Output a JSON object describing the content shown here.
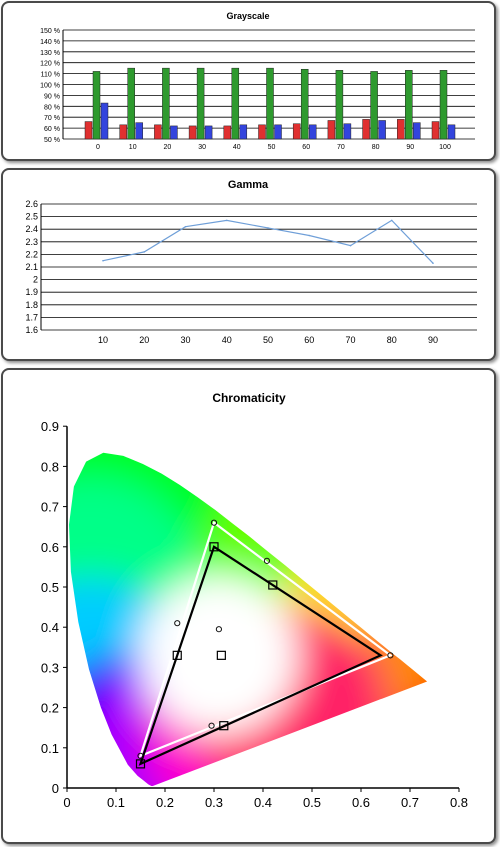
{
  "chart_data": [
    {
      "type": "bar",
      "title": "Grayscale",
      "categories": [
        "0",
        "10",
        "20",
        "30",
        "40",
        "50",
        "60",
        "70",
        "80",
        "90",
        "100"
      ],
      "ylim": [
        50,
        150
      ],
      "y_tick_labels": [
        "50 %",
        "60 %",
        "70 %",
        "80 %",
        "90 %",
        "100 %",
        "110 %",
        "120 %",
        "130 %",
        "140 %",
        "150 %"
      ],
      "grid": true,
      "series": [
        {
          "color": "#e03030",
          "values": [
            66,
            63,
            63,
            62,
            62,
            63,
            64,
            67,
            68,
            68,
            66
          ]
        },
        {
          "color": "#2e9a2e",
          "values": [
            112,
            115,
            115,
            115,
            115,
            115,
            114,
            113,
            112,
            113,
            113
          ]
        },
        {
          "color": "#3344dd",
          "values": [
            83,
            65,
            62,
            62,
            63,
            63,
            63,
            64,
            67,
            65,
            63
          ]
        }
      ]
    },
    {
      "type": "line",
      "title": "Gamma",
      "x": [
        10,
        20,
        30,
        40,
        50,
        60,
        70,
        80,
        90
      ],
      "values": [
        2.15,
        2.22,
        2.42,
        2.47,
        2.41,
        2.35,
        2.27,
        2.47,
        2.13
      ],
      "ylim": [
        1.6,
        2.6
      ],
      "y_tick_labels": [
        "1.6",
        "1.7",
        "1.8",
        "1.9",
        "2",
        "2.1",
        "2.2",
        "2.3",
        "2.4",
        "2.5",
        "2.6"
      ],
      "x_tick_labels": [
        "10",
        "20",
        "30",
        "40",
        "50",
        "60",
        "70",
        "80",
        "90"
      ],
      "line_color": "#6f9fd8",
      "grid": true
    },
    {
      "type": "scatter",
      "title": "Chromaticity",
      "xlim": [
        0,
        0.8
      ],
      "ylim": [
        0,
        0.9
      ],
      "x_tick_labels": [
        "0",
        "0.1",
        "0.2",
        "0.3",
        "0.4",
        "0.5",
        "0.6",
        "0.7",
        "0.8"
      ],
      "y_tick_labels": [
        "0",
        "0.1",
        "0.2",
        "0.3",
        "0.4",
        "0.5",
        "0.6",
        "0.7",
        "0.8",
        "0.9"
      ],
      "reference_gamut": [
        [
          0.3,
          0.66
        ],
        [
          0.66,
          0.33
        ],
        [
          0.15,
          0.08
        ]
      ],
      "measured_gamut": [
        [
          0.3,
          0.6
        ],
        [
          0.64,
          0.33
        ],
        [
          0.15,
          0.06
        ]
      ],
      "reference_points": [
        [
          0.225,
          0.41
        ],
        [
          0.408,
          0.565
        ],
        [
          0.31,
          0.395
        ],
        [
          0.295,
          0.155
        ]
      ],
      "measured_points": [
        [
          0.3,
          0.6
        ],
        [
          0.42,
          0.505
        ],
        [
          0.225,
          0.33
        ],
        [
          0.315,
          0.33
        ],
        [
          0.32,
          0.155
        ],
        [
          0.15,
          0.06
        ]
      ],
      "reference_color": "#ffffff",
      "measured_color": "#000000"
    }
  ]
}
